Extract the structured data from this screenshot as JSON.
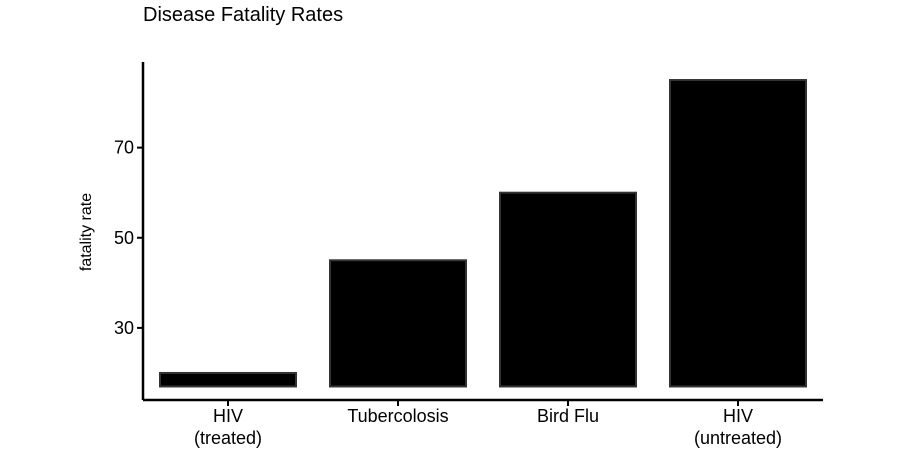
{
  "chart_data": {
    "type": "bar",
    "title": "Disease Fatality Rates",
    "xlabel": "",
    "ylabel": "fatality rate",
    "categories": [
      [
        "HIV",
        "(treated)"
      ],
      [
        "Tubercolosis"
      ],
      [
        "Bird Flu"
      ],
      [
        "HIV",
        "(untreated)"
      ]
    ],
    "values": [
      20,
      45,
      60,
      85
    ],
    "baseline": 17,
    "ylim": [
      14,
      89
    ],
    "yticks": [
      30,
      50,
      70
    ],
    "grid": false,
    "legend": "none",
    "bar_color": "#000000"
  }
}
